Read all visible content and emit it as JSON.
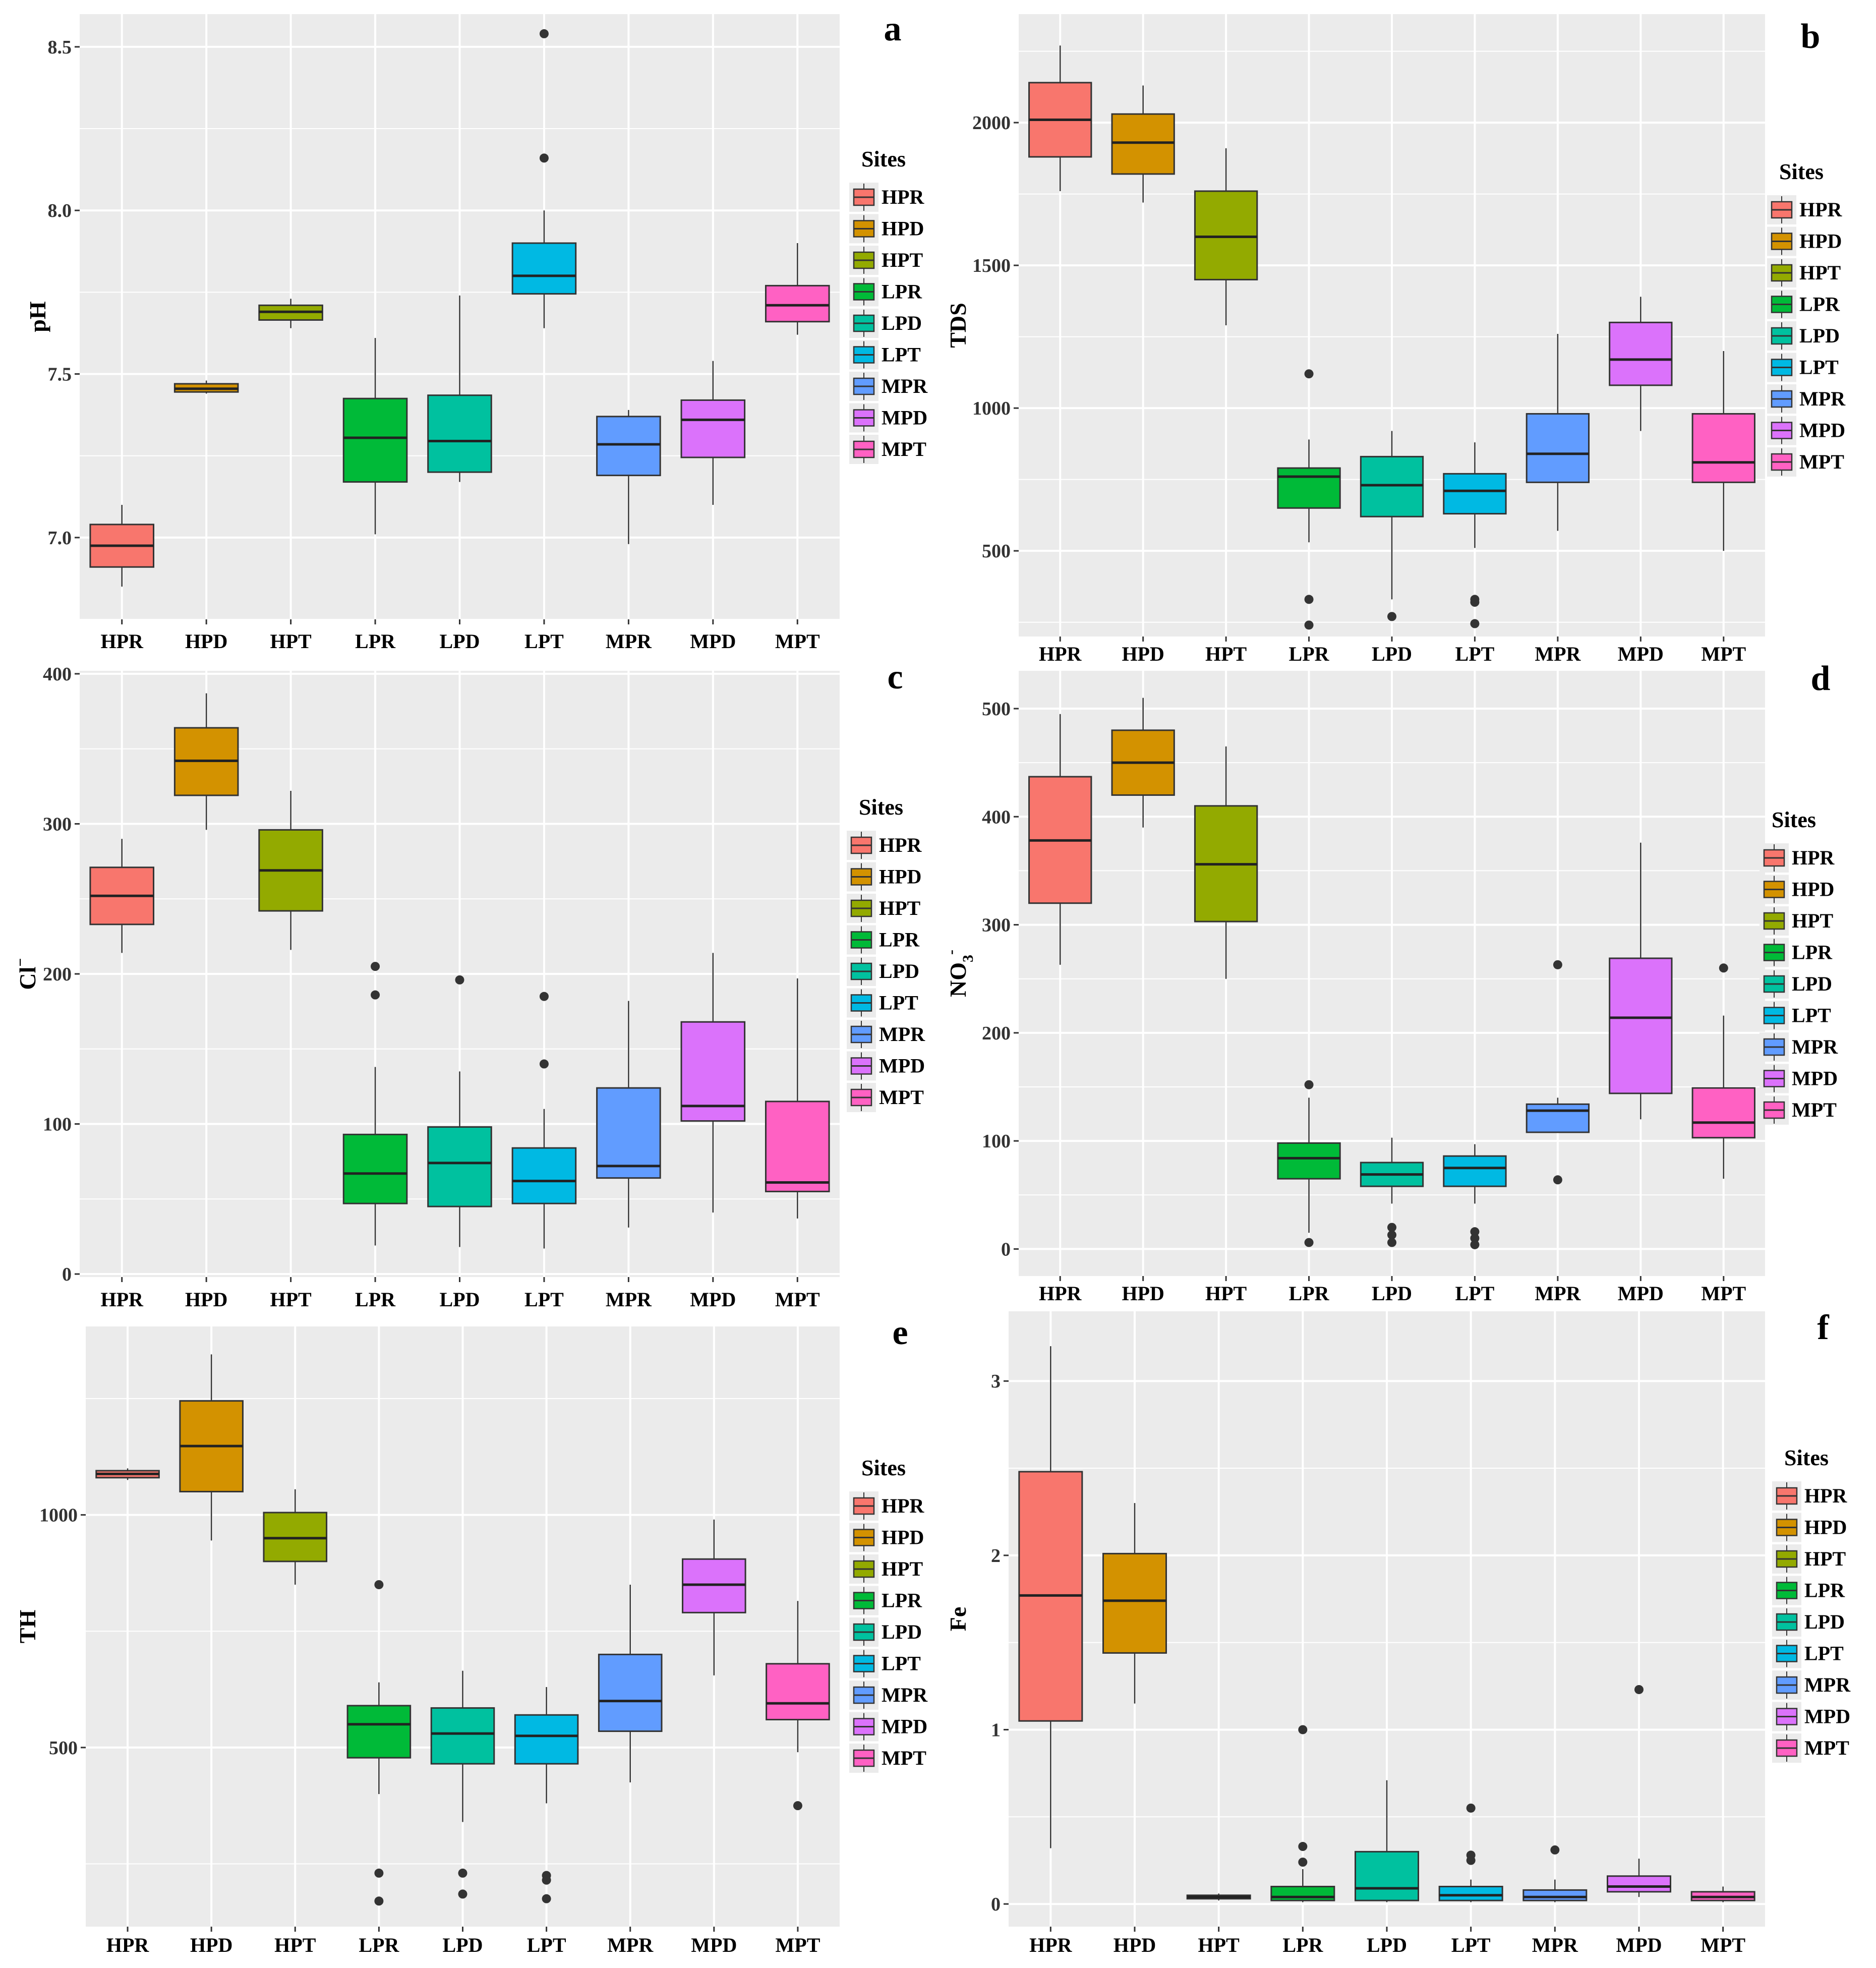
{
  "chart_data": [
    {
      "panel": "a",
      "type": "box",
      "ylabel": "pH",
      "ylabel_sub": "",
      "ylabel_sup": "",
      "ylim": [
        6.75,
        8.6
      ],
      "yticks": [
        7.0,
        7.5,
        8.0,
        8.5
      ],
      "ytick_labels": [
        "7.0",
        "7.5",
        "8.0",
        "8.5"
      ],
      "categories": [
        "HPR",
        "HPD",
        "HPT",
        "LPR",
        "LPD",
        "LPT",
        "MPR",
        "MPD",
        "MPT"
      ],
      "boxes": [
        {
          "min": 6.85,
          "q1": 6.91,
          "median": 6.975,
          "q3": 7.04,
          "max": 7.1,
          "outliers": []
        },
        {
          "min": 7.44,
          "q1": 7.445,
          "median": 7.455,
          "q3": 7.47,
          "max": 7.48,
          "outliers": []
        },
        {
          "min": 7.64,
          "q1": 7.665,
          "median": 7.69,
          "q3": 7.71,
          "max": 7.73,
          "outliers": []
        },
        {
          "min": 7.01,
          "q1": 7.17,
          "median": 7.305,
          "q3": 7.425,
          "max": 7.61,
          "outliers": []
        },
        {
          "min": 7.17,
          "q1": 7.2,
          "median": 7.295,
          "q3": 7.435,
          "max": 7.74,
          "outliers": []
        },
        {
          "min": 7.64,
          "q1": 7.745,
          "median": 7.8,
          "q3": 7.9,
          "max": 8.0,
          "outliers": [
            8.16,
            8.54
          ]
        },
        {
          "min": 6.98,
          "q1": 7.19,
          "median": 7.285,
          "q3": 7.37,
          "max": 7.39,
          "outliers": []
        },
        {
          "min": 7.1,
          "q1": 7.245,
          "median": 7.36,
          "q3": 7.42,
          "max": 7.54,
          "outliers": []
        },
        {
          "min": 7.62,
          "q1": 7.66,
          "median": 7.71,
          "q3": 7.77,
          "max": 7.9,
          "outliers": []
        }
      ]
    },
    {
      "panel": "b",
      "type": "box",
      "ylabel": "TDS",
      "ylabel_sub": "",
      "ylabel_sup": "",
      "ylim": [
        200,
        2380
      ],
      "yticks": [
        500,
        1000,
        1500,
        2000
      ],
      "ytick_labels": [
        "500",
        "1000",
        "1500",
        "2000"
      ],
      "categories": [
        "HPR",
        "HPD",
        "HPT",
        "LPR",
        "LPD",
        "LPT",
        "MPR",
        "MPD",
        "MPT"
      ],
      "boxes": [
        {
          "min": 1760,
          "q1": 1880,
          "median": 2010,
          "q3": 2140,
          "max": 2270,
          "outliers": []
        },
        {
          "min": 1720,
          "q1": 1820,
          "median": 1930,
          "q3": 2030,
          "max": 2130,
          "outliers": []
        },
        {
          "min": 1290,
          "q1": 1450,
          "median": 1600,
          "q3": 1760,
          "max": 1910,
          "outliers": []
        },
        {
          "min": 530,
          "q1": 650,
          "median": 760,
          "q3": 790,
          "max": 890,
          "outliers": [
            1120,
            330,
            240
          ]
        },
        {
          "min": 330,
          "q1": 620,
          "median": 730,
          "q3": 830,
          "max": 920,
          "outliers": [
            270
          ]
        },
        {
          "min": 510,
          "q1": 630,
          "median": 710,
          "q3": 770,
          "max": 880,
          "outliers": [
            320,
            330,
            245
          ]
        },
        {
          "min": 570,
          "q1": 740,
          "median": 840,
          "q3": 980,
          "max": 1260,
          "outliers": []
        },
        {
          "min": 920,
          "q1": 1080,
          "median": 1170,
          "q3": 1300,
          "max": 1390,
          "outliers": []
        },
        {
          "min": 500,
          "q1": 740,
          "median": 810,
          "q3": 980,
          "max": 1200,
          "outliers": []
        }
      ]
    },
    {
      "panel": "c",
      "type": "box",
      "ylabel": "Cl",
      "ylabel_sub": "",
      "ylabel_sup": "−",
      "ylim": [
        -2,
        402
      ],
      "yticks": [
        0,
        100,
        200,
        300,
        400
      ],
      "ytick_labels": [
        "0",
        "100",
        "200",
        "300",
        "400"
      ],
      "categories": [
        "HPR",
        "HPD",
        "HPT",
        "LPR",
        "LPD",
        "LPT",
        "MPR",
        "MPD",
        "MPT"
      ],
      "boxes": [
        {
          "min": 214,
          "q1": 233,
          "median": 252,
          "q3": 271,
          "max": 290,
          "outliers": []
        },
        {
          "min": 296,
          "q1": 319,
          "median": 342,
          "q3": 364,
          "max": 387,
          "outliers": []
        },
        {
          "min": 216,
          "q1": 242,
          "median": 269,
          "q3": 296,
          "max": 322,
          "outliers": []
        },
        {
          "min": 19,
          "q1": 47,
          "median": 67,
          "q3": 93,
          "max": 138,
          "outliers": [
            186,
            205
          ]
        },
        {
          "min": 18,
          "q1": 45,
          "median": 74,
          "q3": 98,
          "max": 135,
          "outliers": [
            196
          ]
        },
        {
          "min": 17,
          "q1": 47,
          "median": 62,
          "q3": 84,
          "max": 110,
          "outliers": [
            140,
            185
          ]
        },
        {
          "min": 31,
          "q1": 64,
          "median": 72,
          "q3": 124,
          "max": 182,
          "outliers": []
        },
        {
          "min": 41,
          "q1": 102,
          "median": 112,
          "q3": 168,
          "max": 214,
          "outliers": []
        },
        {
          "min": 37,
          "q1": 55,
          "median": 61,
          "q3": 115,
          "max": 197,
          "outliers": []
        }
      ]
    },
    {
      "panel": "d",
      "type": "box",
      "ylabel": "NO",
      "ylabel_sub": "3",
      "ylabel_sup": "-",
      "ylim": [
        -25,
        535
      ],
      "yticks": [
        0,
        100,
        200,
        300,
        400,
        500
      ],
      "ytick_labels": [
        "0",
        "100",
        "200",
        "300",
        "400",
        "500"
      ],
      "categories": [
        "HPR",
        "HPD",
        "HPT",
        "LPR",
        "LPD",
        "LPT",
        "MPR",
        "MPD",
        "MPT"
      ],
      "boxes": [
        {
          "min": 263,
          "q1": 320,
          "median": 378,
          "q3": 437,
          "max": 495,
          "outliers": []
        },
        {
          "min": 390,
          "q1": 420,
          "median": 450,
          "q3": 480,
          "max": 510,
          "outliers": []
        },
        {
          "min": 250,
          "q1": 303,
          "median": 356,
          "q3": 410,
          "max": 465,
          "outliers": []
        },
        {
          "min": 15,
          "q1": 65,
          "median": 84,
          "q3": 98,
          "max": 140,
          "outliers": [
            152,
            6
          ]
        },
        {
          "min": 42,
          "q1": 58,
          "median": 69,
          "q3": 80,
          "max": 103,
          "outliers": [
            20,
            13,
            6
          ]
        },
        {
          "min": 42,
          "q1": 58,
          "median": 75,
          "q3": 86,
          "max": 97,
          "outliers": [
            16,
            10,
            4
          ]
        },
        {
          "min": 108,
          "q1": 108,
          "median": 128,
          "q3": 134,
          "max": 140,
          "outliers": [
            263,
            64
          ]
        },
        {
          "min": 120,
          "q1": 144,
          "median": 214,
          "q3": 269,
          "max": 376,
          "outliers": []
        },
        {
          "min": 65,
          "q1": 103,
          "median": 117,
          "q3": 149,
          "max": 216,
          "outliers": [
            260
          ]
        }
      ]
    },
    {
      "panel": "e",
      "type": "box",
      "ylabel": "TH",
      "ylabel_sub": "",
      "ylabel_sup": "",
      "ylim": [
        115,
        1405
      ],
      "yticks": [
        500,
        1000
      ],
      "ytick_labels": [
        "500",
        "1000"
      ],
      "categories": [
        "HPR",
        "HPD",
        "HPT",
        "LPR",
        "LPD",
        "LPT",
        "MPR",
        "MPD",
        "MPT"
      ],
      "boxes": [
        {
          "min": 1075,
          "q1": 1080,
          "median": 1088,
          "q3": 1095,
          "max": 1100,
          "outliers": []
        },
        {
          "min": 945,
          "q1": 1050,
          "median": 1148,
          "q3": 1245,
          "max": 1345,
          "outliers": []
        },
        {
          "min": 850,
          "q1": 900,
          "median": 950,
          "q3": 1005,
          "max": 1055,
          "outliers": []
        },
        {
          "min": 400,
          "q1": 478,
          "median": 550,
          "q3": 590,
          "max": 640,
          "outliers": [
            850,
            230,
            170
          ]
        },
        {
          "min": 340,
          "q1": 465,
          "median": 530,
          "q3": 585,
          "max": 665,
          "outliers": [
            230,
            185
          ]
        },
        {
          "min": 380,
          "q1": 465,
          "median": 525,
          "q3": 570,
          "max": 630,
          "outliers": [
            225,
            215,
            175
          ]
        },
        {
          "min": 425,
          "q1": 535,
          "median": 600,
          "q3": 700,
          "max": 850,
          "outliers": []
        },
        {
          "min": 655,
          "q1": 790,
          "median": 850,
          "q3": 905,
          "max": 990,
          "outliers": []
        },
        {
          "min": 490,
          "q1": 560,
          "median": 595,
          "q3": 680,
          "max": 815,
          "outliers": [
            375
          ]
        }
      ]
    },
    {
      "panel": "f",
      "type": "box",
      "ylabel": "Fe",
      "ylabel_sub": "",
      "ylabel_sup": "",
      "ylim": [
        -0.13,
        3.4
      ],
      "yticks": [
        0,
        1,
        2,
        3
      ],
      "ytick_labels": [
        "0",
        "1",
        "2",
        "3"
      ],
      "categories": [
        "HPR",
        "HPD",
        "HPT",
        "LPR",
        "LPD",
        "LPT",
        "MPR",
        "MPD",
        "MPT"
      ],
      "boxes": [
        {
          "min": 0.32,
          "q1": 1.05,
          "median": 1.77,
          "q3": 2.48,
          "max": 3.2,
          "outliers": []
        },
        {
          "min": 1.15,
          "q1": 1.44,
          "median": 1.74,
          "q3": 2.01,
          "max": 2.3,
          "outliers": []
        },
        {
          "min": 0.02,
          "q1": 0.03,
          "median": 0.04,
          "q3": 0.05,
          "max": 0.06,
          "outliers": []
        },
        {
          "min": 0.01,
          "q1": 0.02,
          "median": 0.04,
          "q3": 0.1,
          "max": 0.2,
          "outliers": [
            0.24,
            0.33,
            1.0
          ]
        },
        {
          "min": 0.01,
          "q1": 0.02,
          "median": 0.09,
          "q3": 0.3,
          "max": 0.71,
          "outliers": []
        },
        {
          "min": 0.01,
          "q1": 0.02,
          "median": 0.05,
          "q3": 0.1,
          "max": 0.14,
          "outliers": [
            0.25,
            0.28,
            0.55
          ]
        },
        {
          "min": 0.01,
          "q1": 0.02,
          "median": 0.04,
          "q3": 0.08,
          "max": 0.14,
          "outliers": [
            0.31
          ]
        },
        {
          "min": 0.04,
          "q1": 0.07,
          "median": 0.1,
          "q3": 0.16,
          "max": 0.26,
          "outliers": [
            1.23
          ]
        },
        {
          "min": 0.01,
          "q1": 0.02,
          "median": 0.04,
          "q3": 0.07,
          "max": 0.1,
          "outliers": []
        }
      ]
    }
  ],
  "legend": {
    "title": "Sites",
    "items": [
      "HPR",
      "HPD",
      "HPT",
      "LPR",
      "LPD",
      "LPT",
      "MPR",
      "MPD",
      "MPT"
    ],
    "colors": [
      "#F8766D",
      "#D39200",
      "#93AA00",
      "#00BA38",
      "#00C19F",
      "#00B9E3",
      "#619CFF",
      "#DB72FB",
      "#FF61C3"
    ]
  }
}
